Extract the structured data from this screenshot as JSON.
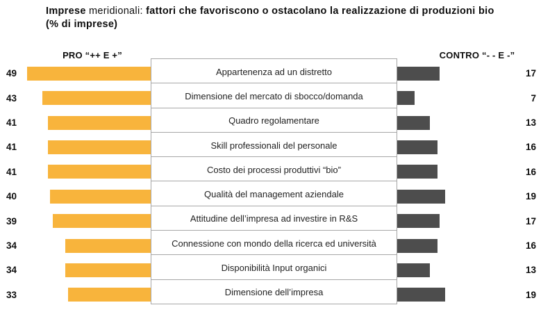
{
  "title": {
    "bold_lead": "Imprese",
    "regular": " meridionali: ",
    "bold_rest": "fattori che favoriscono o ostacolano la realizzazione di produzioni bio",
    "line2": "(% di imprese)"
  },
  "headers": {
    "pro": "PRO “++ E +”",
    "contro": "CONTRO “- - E -”"
  },
  "chart_data": {
    "type": "bar",
    "subtype": "tornado-diverging",
    "title": "Imprese meridionali: fattori che favoriscono o ostacolano la realizzazione di produzioni bio (% di imprese)",
    "unit": "% di imprese",
    "categories": [
      "Appartenenza ad un distretto",
      "Dimensione del mercato di sbocco/domanda",
      "Quadro regolamentare",
      "Skill professionali del personale",
      "Costo dei processi produttivi “bio”",
      "Qualità del management aziendale",
      "Attitudine dell’impresa ad investire in R&S",
      "Connessione con mondo della ricerca ed università",
      "Disponibilità Input organici",
      "Dimensione dell’impresa"
    ],
    "series": [
      {
        "name": "PRO “++ E +”",
        "side": "left",
        "color": "#F8B43C",
        "values": [
          49,
          43,
          41,
          41,
          41,
          40,
          39,
          34,
          34,
          33
        ]
      },
      {
        "name": "CONTRO “- - E -”",
        "side": "right",
        "color": "#4D4D4D",
        "values": [
          17,
          7,
          13,
          16,
          16,
          19,
          17,
          16,
          13,
          19
        ]
      }
    ],
    "value_labels": "shown at outer chart edges",
    "axes": "hidden",
    "grid": false,
    "legend_position": "top, as PRO / CONTRO column headers"
  },
  "colors": {
    "pro_bar": "#F8B43C",
    "contro_bar": "#4D4D4D",
    "label_box_border": "#A6A6A6",
    "background": "#FFFFFF",
    "text": "#0D0D0D"
  }
}
